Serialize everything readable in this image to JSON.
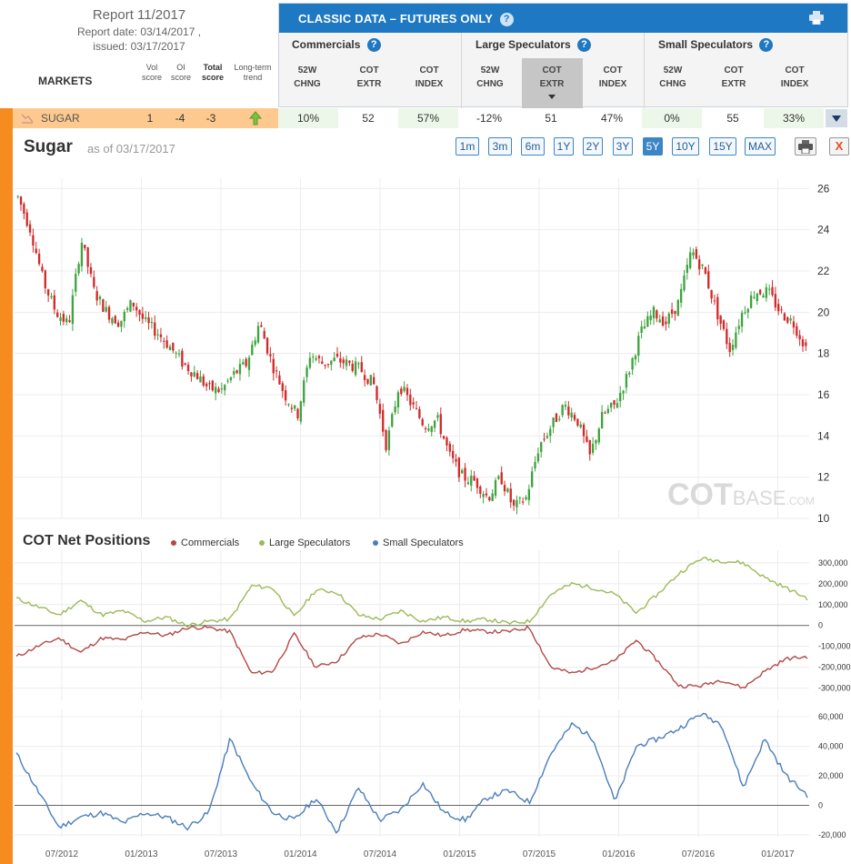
{
  "report": {
    "title": "Report 11/2017",
    "date_line": "Report date: 03/14/2017 ,",
    "issued_line": "issued: 03/17/2017"
  },
  "markets_header": {
    "label": "MARKETS",
    "vol_score": [
      "Vol",
      "score"
    ],
    "oi_score": [
      "OI",
      "score"
    ],
    "total_score": [
      "Total",
      "score"
    ],
    "trend": [
      "Long-term",
      "trend"
    ]
  },
  "classic_panel": {
    "title": "CLASSIC DATA – FUTURES ONLY",
    "help": "?",
    "groups": [
      {
        "label": "Commercials",
        "cols": [
          [
            "52W",
            "CHNG"
          ],
          [
            "COT",
            "EXTR"
          ],
          [
            "COT",
            "INDEX"
          ]
        ]
      },
      {
        "label": "Large Speculators",
        "cols": [
          [
            "52W",
            "CHNG"
          ],
          [
            "COT",
            "EXTR"
          ],
          [
            "COT",
            "INDEX"
          ]
        ]
      },
      {
        "label": "Small Speculators",
        "cols": [
          [
            "52W",
            "CHNG"
          ],
          [
            "COT",
            "EXTR"
          ],
          [
            "COT",
            "INDEX"
          ]
        ]
      }
    ]
  },
  "row": {
    "market": "SUGAR",
    "vol_score": "1",
    "oi_score": "-4",
    "total_score": "-3",
    "values": [
      "10%",
      "52",
      "57%",
      "-12%",
      "51",
      "47%",
      "0%",
      "55",
      "33%"
    ]
  },
  "colors": {
    "up_candle": "#3fa33f",
    "down_candle": "#d12a2a",
    "commercials": "#b34848",
    "large_speculators": "#9bba59",
    "small_speculators": "#4a7ebb",
    "accent": "#1e78c2",
    "orange": "#f68b1f"
  },
  "chart_header": {
    "title": "Sugar",
    "as_of": "as of 03/17/2017",
    "ranges": [
      "1m",
      "3m",
      "6m",
      "1Y",
      "2Y",
      "3Y",
      "5Y",
      "10Y",
      "15Y",
      "MAX"
    ],
    "active_range": "5Y",
    "close_label": "X"
  },
  "watermark": {
    "main": "COT",
    "suffix": "BASE",
    "tld": ".COM"
  },
  "net_positions": {
    "title": "COT Net Positions",
    "legend": [
      "Commercials",
      "Large Speculators",
      "Small Speculators"
    ]
  },
  "chart_data": [
    {
      "type": "candlestick",
      "title": "Sugar",
      "ylim": [
        10,
        26.5
      ],
      "y_ticks": [
        "26",
        "24",
        "22",
        "20",
        "18",
        "16",
        "14",
        "12",
        "10"
      ],
      "x_ticks": [
        "07/2012",
        "01/2013",
        "07/2013",
        "01/2014",
        "07/2014",
        "01/2015",
        "07/2015",
        "01/2016",
        "07/2016",
        "01/2017"
      ],
      "x_range": [
        "2012-03",
        "2017-03"
      ],
      "series": [
        {
          "name": "Sugar",
          "t": [
            0,
            1,
            2,
            3,
            4,
            5,
            6,
            7,
            8,
            9,
            10,
            11,
            12,
            13,
            14,
            15,
            16,
            17,
            18,
            19,
            20,
            21,
            22,
            23,
            24,
            25,
            26,
            27,
            28,
            29,
            30,
            31,
            32,
            33,
            34,
            35,
            36,
            37,
            38,
            39,
            40,
            41,
            42,
            43,
            44,
            45,
            46,
            47,
            48,
            49,
            50,
            51,
            52,
            53,
            54,
            55,
            56,
            57,
            58,
            59,
            60,
            61,
            62
          ],
          "close": [
            25.6,
            24.0,
            21.5,
            20.0,
            19.4,
            23.5,
            21.0,
            20.0,
            19.5,
            20.5,
            19.5,
            19.0,
            18.3,
            17.5,
            17.0,
            16.3,
            16.2,
            17.0,
            17.5,
            19.5,
            17.5,
            16.0,
            15.0,
            18.0,
            17.5,
            17.7,
            17.5,
            17.2,
            16.5,
            13.5,
            16.5,
            15.5,
            14.5,
            14.8,
            13.0,
            12.0,
            11.8,
            11.0,
            12.0,
            10.5,
            11.0,
            13.5,
            14.5,
            15.5,
            14.8,
            13.0,
            15.0,
            15.5,
            17.0,
            19.0,
            20.0,
            19.5,
            20.5,
            23.0,
            22.0,
            20.0,
            18.2,
            20.0,
            21.0,
            21.0,
            20.0,
            19.5,
            18.3
          ]
        }
      ]
    },
    {
      "type": "line",
      "title": "COT Net Positions",
      "ylim": [
        -350000,
        330000
      ],
      "y_ticks": [
        "300,000",
        "200,000",
        "100,000",
        "0",
        "-100,000",
        "-200,000",
        "-300,000"
      ],
      "series": [
        {
          "name": "Commercials",
          "values": [
            -150000,
            -100000,
            -60000,
            -130000,
            -60000,
            -70000,
            -30000,
            -50000,
            -10000,
            -10000,
            -30000,
            -230000,
            -220000,
            -40000,
            -200000,
            -170000,
            -60000,
            -40000,
            -90000,
            -30000,
            -50000,
            -20000,
            -30000,
            -30000,
            -10000,
            -200000,
            -230000,
            -200000,
            -170000,
            -70000,
            -170000,
            -290000,
            -290000,
            -260000,
            -300000,
            -220000,
            -160000,
            -150000
          ]
        },
        {
          "name": "Large Speculators",
          "values": [
            130000,
            90000,
            50000,
            120000,
            50000,
            70000,
            20000,
            40000,
            0,
            20000,
            30000,
            190000,
            180000,
            40000,
            170000,
            160000,
            50000,
            30000,
            70000,
            20000,
            40000,
            20000,
            30000,
            10000,
            20000,
            150000,
            200000,
            180000,
            150000,
            60000,
            150000,
            250000,
            320000,
            310000,
            300000,
            230000,
            180000,
            130000
          ]
        },
        {
          "name": "Small Speculators",
          "values": [
            35000,
            10000,
            -15000,
            -8000,
            -5000,
            -12000,
            -5000,
            -8000,
            -15000,
            -5000,
            45000,
            15000,
            -5000,
            -10000,
            5000,
            -18000,
            12000,
            -10000,
            -3000,
            15000,
            -5000,
            -10000,
            5000,
            10000,
            2000,
            35000,
            55000,
            45000,
            2000,
            40000,
            45000,
            52000,
            62000,
            55000,
            12000,
            45000,
            20000,
            7000
          ]
        }
      ]
    }
  ]
}
